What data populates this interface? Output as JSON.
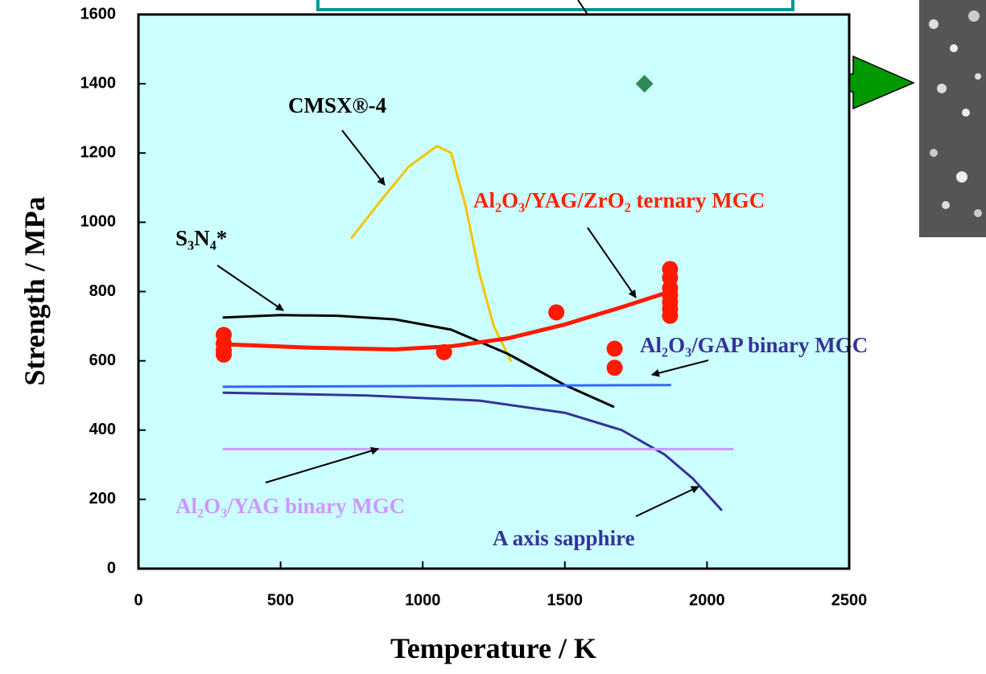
{
  "chart_data": {
    "type": "line",
    "x_label": "Temperature / K",
    "y_label": "Strength / MPa",
    "xlim": [
      0,
      2500
    ],
    "xticks": [
      0,
      500,
      1000,
      1500,
      2000,
      2500
    ],
    "ylim": [
      0,
      1600
    ],
    "yticks": [
      0,
      200,
      400,
      600,
      800,
      1000,
      1200,
      1400,
      1600
    ],
    "background": "#ccffff",
    "series": [
      {
        "name": "CMSX®-4",
        "color": "#f5c400",
        "mode": "line",
        "label_color": "#000000",
        "x": [
          750,
          850,
          950,
          1050,
          1100,
          1150,
          1200,
          1250,
          1310
        ],
        "values": [
          955,
          1060,
          1160,
          1220,
          1200,
          1050,
          850,
          700,
          600
        ]
      },
      {
        "name": "S₃N₄*",
        "color": "#000000",
        "mode": "line",
        "label_color": "#000000",
        "x": [
          300,
          500,
          700,
          900,
          1100,
          1300,
          1500,
          1670
        ],
        "values": [
          725,
          732,
          730,
          720,
          690,
          620,
          530,
          468
        ]
      },
      {
        "name": "Al₂O₃/YAG/ZrO₂ ternary MGC",
        "color": "#ff1a00",
        "mode": "line",
        "label_color": "#ff2200",
        "x": [
          300,
          600,
          900,
          1100,
          1300,
          1500,
          1700,
          1870
        ],
        "values": [
          648,
          638,
          633,
          642,
          665,
          705,
          755,
          800
        ]
      },
      {
        "color": "#ff1a00",
        "mode": "scatter",
        "x": [
          300,
          300,
          300,
          300,
          1075,
          1470,
          1675,
          1675,
          1870,
          1870,
          1870,
          1870,
          1870,
          1870,
          1870
        ],
        "values": [
          675,
          650,
          630,
          618,
          625,
          740,
          635,
          580,
          865,
          840,
          810,
          790,
          770,
          750,
          730
        ]
      },
      {
        "name": "Al₂O₃/GAP binary MGC",
        "color": "#3366ff",
        "mode": "line",
        "label_color": "#333399",
        "x": [
          300,
          1870
        ],
        "values": [
          525,
          530
        ]
      },
      {
        "name": "A axis sapphire",
        "color": "#333399",
        "mode": "line",
        "label_color": "#333399",
        "x": [
          300,
          800,
          1200,
          1500,
          1700,
          1850,
          1950,
          2050
        ],
        "values": [
          508,
          500,
          485,
          450,
          400,
          330,
          260,
          170
        ]
      },
      {
        "name": "Al₂O₃/YAG binary MGC",
        "color": "#cc99ff",
        "mode": "line",
        "label_color": "#cc99ff",
        "x": [
          300,
          2090
        ],
        "values": [
          345,
          345
        ]
      },
      {
        "color": "#2e8b57",
        "mode": "diamond",
        "x": [
          1780
        ],
        "values": [
          1400
        ]
      }
    ]
  }
}
